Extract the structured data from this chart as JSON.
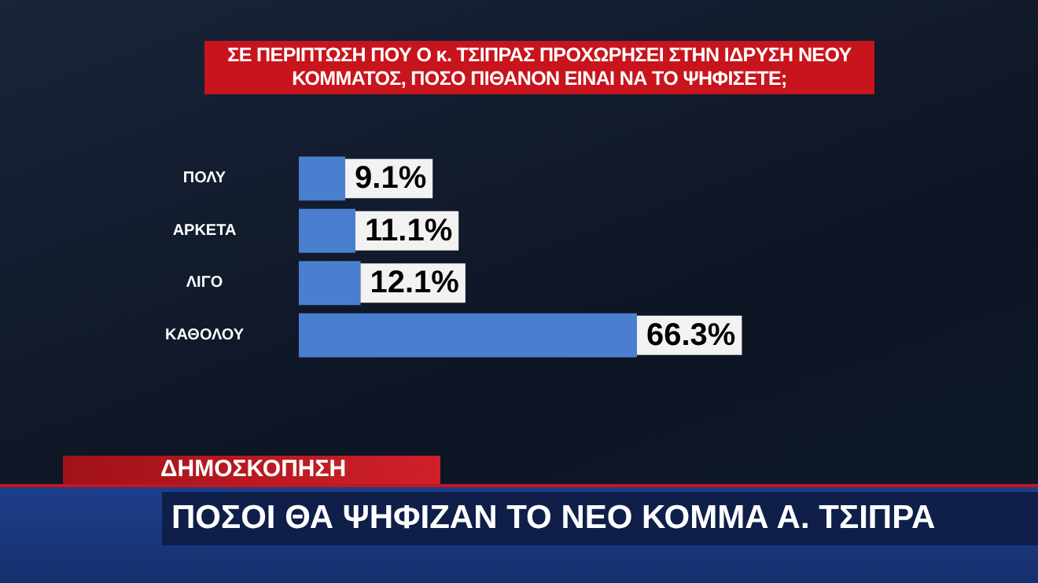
{
  "chart_data": {
    "type": "bar",
    "orientation": "horizontal",
    "title": "ΣΕ ΠΕΡΙΠΤΩΣΗ ΠΟΥ Ο  κ. ΤΣΙΠΡΑΣ ΠΡΟΧΩΡΗΣΕΙ ΣΤΗΝ ΙΔΡΥΣΗ ΝΕΟΥ ΚΟΜΜΑΤΟΣ, ΠΟΣΟ ΠΙΘΑΝΟΝ ΕΙΝΑΙ ΝΑ ΤΟ ΨΗΦΙΣΕΤΕ;",
    "categories": [
      "ΠΟΛΥ",
      "ΑΡΚΕΤΑ",
      "ΛΙΓΟ",
      "ΚΑΘΟΛΟΥ"
    ],
    "values": [
      9.1,
      11.1,
      12.1,
      66.3
    ],
    "value_labels": [
      "9.1%",
      "11.1%",
      "12.1%",
      "66.3%"
    ],
    "color": "#4a7fd0",
    "annotations": [
      "ΔΗΜΟΣΚΟΠΗΣΗ",
      "ΠΟΣΟΙ ΘΑ ΨΗΦΙΖΑΝ ΤΟ ΝΕΟ ΚΟΜΜΑ Α. ΤΣΙΠΡΑ"
    ]
  }
}
